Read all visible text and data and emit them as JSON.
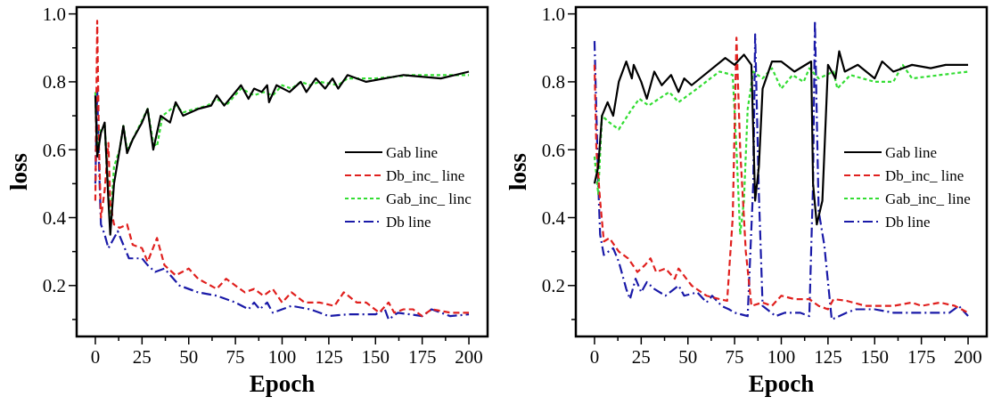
{
  "chart_data": [
    {
      "type": "line",
      "xlabel": "Epoch",
      "ylabel": "loss",
      "xlim": [
        -10,
        210
      ],
      "ylim": [
        0.05,
        1.02
      ],
      "xticks": [
        0,
        {
          "value": 12.5,
          "label": null
        },
        25,
        {
          "value": 37.5,
          "label": null
        },
        50,
        {
          "value": 62.5,
          "label": null
        },
        75,
        {
          "value": 87.5,
          "label": null
        },
        100,
        {
          "value": 112.5,
          "label": null
        },
        125,
        {
          "value": 137.5,
          "label": null
        },
        150,
        {
          "value": 162.5,
          "label": null
        },
        175,
        {
          "value": 187.5,
          "label": null
        },
        200
      ],
      "yticks": [
        {
          "value": 0.1,
          "label": null
        },
        0.2,
        {
          "value": 0.3,
          "label": null
        },
        0.4,
        {
          "value": 0.5,
          "label": null
        },
        0.6,
        {
          "value": 0.7,
          "label": null
        },
        0.8,
        {
          "value": 0.9,
          "label": null
        },
        {
          "value": 1.0,
          "label": "1.0"
        }
      ],
      "legend": "right",
      "grid": false,
      "series": [
        {
          "name": "Gab line",
          "color": "#000000",
          "line_style": "solid",
          "x": [
            0,
            1,
            3,
            5,
            7,
            8,
            10,
            13,
            15,
            17,
            20,
            25,
            28,
            31,
            35,
            40,
            43,
            47,
            55,
            62,
            65,
            69,
            78,
            82,
            85,
            89,
            92,
            93,
            97,
            104,
            110,
            113,
            118,
            123,
            127,
            130,
            135,
            145,
            165,
            185,
            200
          ],
          "values": [
            0.76,
            0.58,
            0.65,
            0.68,
            0.45,
            0.35,
            0.5,
            0.6,
            0.67,
            0.59,
            0.63,
            0.68,
            0.72,
            0.6,
            0.7,
            0.68,
            0.74,
            0.7,
            0.72,
            0.73,
            0.76,
            0.73,
            0.79,
            0.75,
            0.78,
            0.77,
            0.79,
            0.74,
            0.79,
            0.77,
            0.8,
            0.77,
            0.81,
            0.78,
            0.81,
            0.78,
            0.82,
            0.8,
            0.82,
            0.81,
            0.83
          ]
        },
        {
          "name": "Db_inc_ line",
          "color": "#e0201e",
          "line_style": "dashed",
          "x": [
            0,
            1,
            2,
            3,
            5,
            7,
            8,
            10,
            13,
            17,
            20,
            25,
            28,
            33,
            37,
            43,
            50,
            55,
            65,
            70,
            80,
            85,
            90,
            95,
            100,
            105,
            112,
            120,
            128,
            133,
            140,
            145,
            152,
            157,
            160,
            165,
            170,
            175,
            180,
            190,
            200
          ],
          "values": [
            0.45,
            0.98,
            0.6,
            0.4,
            0.48,
            0.62,
            0.44,
            0.38,
            0.37,
            0.38,
            0.32,
            0.31,
            0.27,
            0.34,
            0.26,
            0.23,
            0.25,
            0.22,
            0.19,
            0.22,
            0.18,
            0.19,
            0.17,
            0.19,
            0.15,
            0.18,
            0.15,
            0.15,
            0.14,
            0.18,
            0.15,
            0.15,
            0.12,
            0.15,
            0.12,
            0.13,
            0.13,
            0.11,
            0.13,
            0.12,
            0.12
          ]
        },
        {
          "name": "Gab_inc_ linc",
          "color": "#33dd33",
          "line_style": "dotted",
          "x": [
            0,
            1,
            3,
            5,
            8,
            10,
            13,
            15,
            17,
            20,
            28,
            31,
            33,
            36,
            43,
            47,
            60,
            65,
            70,
            78,
            85,
            90,
            95,
            100,
            105,
            110,
            115,
            120,
            130,
            135,
            150,
            170,
            200
          ],
          "values": [
            0.77,
            0.6,
            0.66,
            0.67,
            0.38,
            0.55,
            0.6,
            0.67,
            0.6,
            0.63,
            0.72,
            0.62,
            0.61,
            0.7,
            0.73,
            0.71,
            0.73,
            0.75,
            0.73,
            0.78,
            0.76,
            0.77,
            0.76,
            0.79,
            0.78,
            0.8,
            0.79,
            0.8,
            0.79,
            0.81,
            0.81,
            0.82,
            0.82
          ]
        },
        {
          "name": "Db line",
          "color": "#1a1aa8",
          "line_style": "dashdot",
          "x": [
            0,
            1,
            2,
            3,
            5,
            7,
            9,
            12,
            15,
            18,
            25,
            28,
            32,
            37,
            45,
            55,
            65,
            75,
            82,
            85,
            88,
            92,
            95,
            100,
            105,
            115,
            125,
            135,
            150,
            155,
            157,
            162,
            175,
            180,
            190,
            200
          ],
          "values": [
            0.5,
            0.78,
            0.55,
            0.38,
            0.35,
            0.31,
            0.33,
            0.36,
            0.32,
            0.28,
            0.28,
            0.26,
            0.24,
            0.25,
            0.2,
            0.18,
            0.17,
            0.15,
            0.13,
            0.15,
            0.13,
            0.15,
            0.12,
            0.13,
            0.14,
            0.13,
            0.11,
            0.115,
            0.115,
            0.13,
            0.1,
            0.12,
            0.11,
            0.13,
            0.11,
            0.115
          ]
        }
      ]
    },
    {
      "type": "line",
      "xlabel": "Epoch",
      "ylabel": "loss",
      "xlim": [
        -10,
        210
      ],
      "ylim": [
        0.05,
        1.02
      ],
      "xticks": [
        0,
        {
          "value": 12.5,
          "label": null
        },
        25,
        {
          "value": 37.5,
          "label": null
        },
        50,
        {
          "value": 62.5,
          "label": null
        },
        75,
        {
          "value": 87.5,
          "label": null
        },
        100,
        {
          "value": 112.5,
          "label": null
        },
        125,
        {
          "value": 137.5,
          "label": null
        },
        150,
        {
          "value": 162.5,
          "label": null
        },
        175,
        {
          "value": 187.5,
          "label": null
        },
        200
      ],
      "yticks": [
        {
          "value": 0.1,
          "label": null
        },
        0.2,
        {
          "value": 0.3,
          "label": null
        },
        0.4,
        {
          "value": 0.5,
          "label": null
        },
        0.6,
        {
          "value": 0.7,
          "label": null
        },
        0.8,
        {
          "value": 0.9,
          "label": null
        },
        {
          "value": 1.0,
          "label": "1.0"
        }
      ],
      "legend": "right",
      "grid": false,
      "series": [
        {
          "name": "Gab line",
          "color": "#000000",
          "line_style": "solid",
          "x": [
            0,
            2,
            4,
            7,
            10,
            13,
            17,
            20,
            21,
            25,
            28,
            32,
            36,
            41,
            45,
            48,
            52,
            70,
            75,
            80,
            84,
            86,
            88,
            90,
            95,
            100,
            107,
            116,
            117,
            119,
            122,
            125,
            129,
            131,
            134,
            141,
            150,
            154,
            160,
            170,
            180,
            188,
            200
          ],
          "values": [
            0.5,
            0.55,
            0.7,
            0.74,
            0.7,
            0.8,
            0.86,
            0.81,
            0.85,
            0.8,
            0.75,
            0.83,
            0.79,
            0.82,
            0.77,
            0.81,
            0.79,
            0.87,
            0.85,
            0.88,
            0.85,
            0.45,
            0.55,
            0.78,
            0.86,
            0.86,
            0.83,
            0.86,
            0.5,
            0.38,
            0.45,
            0.85,
            0.81,
            0.89,
            0.83,
            0.85,
            0.81,
            0.86,
            0.83,
            0.85,
            0.84,
            0.85,
            0.85
          ]
        },
        {
          "name": "Db_inc_ line",
          "color": "#e0201e",
          "line_style": "dashed",
          "x": [
            0,
            1,
            3,
            5,
            8,
            13,
            18,
            23,
            27,
            30,
            33,
            38,
            43,
            45,
            52,
            60,
            67,
            71,
            74,
            76,
            78,
            81,
            84,
            90,
            95,
            100,
            107,
            115,
            120,
            125,
            128,
            135,
            145,
            150,
            160,
            170,
            175,
            185,
            193,
            200
          ],
          "values": [
            0.85,
            0.6,
            0.45,
            0.33,
            0.34,
            0.3,
            0.28,
            0.24,
            0.26,
            0.28,
            0.24,
            0.25,
            0.22,
            0.25,
            0.2,
            0.17,
            0.16,
            0.155,
            0.4,
            0.93,
            0.6,
            0.3,
            0.14,
            0.15,
            0.14,
            0.17,
            0.16,
            0.16,
            0.14,
            0.13,
            0.16,
            0.155,
            0.14,
            0.14,
            0.14,
            0.15,
            0.14,
            0.15,
            0.14,
            0.12
          ]
        },
        {
          "name": "Gab_inc_ line",
          "color": "#33dd33",
          "line_style": "dotted",
          "x": [
            0,
            2,
            4,
            8,
            13,
            20,
            24,
            29,
            40,
            45,
            55,
            62,
            67,
            74,
            76,
            78,
            80,
            82,
            85,
            90,
            95,
            100,
            106,
            112,
            115,
            120,
            128,
            130,
            137,
            150,
            160,
            165,
            170,
            200
          ],
          "values": [
            0.58,
            0.47,
            0.7,
            0.68,
            0.66,
            0.72,
            0.75,
            0.73,
            0.77,
            0.74,
            0.78,
            0.81,
            0.83,
            0.82,
            0.6,
            0.35,
            0.45,
            0.72,
            0.83,
            0.81,
            0.84,
            0.78,
            0.82,
            0.8,
            0.84,
            0.81,
            0.83,
            0.78,
            0.82,
            0.8,
            0.8,
            0.85,
            0.81,
            0.83
          ]
        },
        {
          "name": "Db line",
          "color": "#1a1aa8",
          "line_style": "dashdot",
          "x": [
            0,
            2,
            3,
            5,
            10,
            13,
            17,
            19,
            22,
            25,
            28,
            32,
            38,
            45,
            48,
            55,
            60,
            63,
            68,
            72,
            75,
            82,
            85,
            86,
            88,
            90,
            97,
            102,
            110,
            115,
            117,
            118,
            120,
            123,
            127,
            135,
            140,
            150,
            160,
            170,
            190,
            195,
            200
          ],
          "values": [
            0.92,
            0.5,
            0.35,
            0.29,
            0.31,
            0.27,
            0.19,
            0.16,
            0.22,
            0.18,
            0.21,
            0.19,
            0.17,
            0.2,
            0.17,
            0.18,
            0.15,
            0.17,
            0.14,
            0.13,
            0.12,
            0.11,
            0.5,
            0.94,
            0.47,
            0.14,
            0.11,
            0.12,
            0.12,
            0.11,
            0.5,
            0.98,
            0.42,
            0.32,
            0.1,
            0.12,
            0.13,
            0.13,
            0.12,
            0.12,
            0.12,
            0.14,
            0.11
          ]
        }
      ]
    }
  ]
}
